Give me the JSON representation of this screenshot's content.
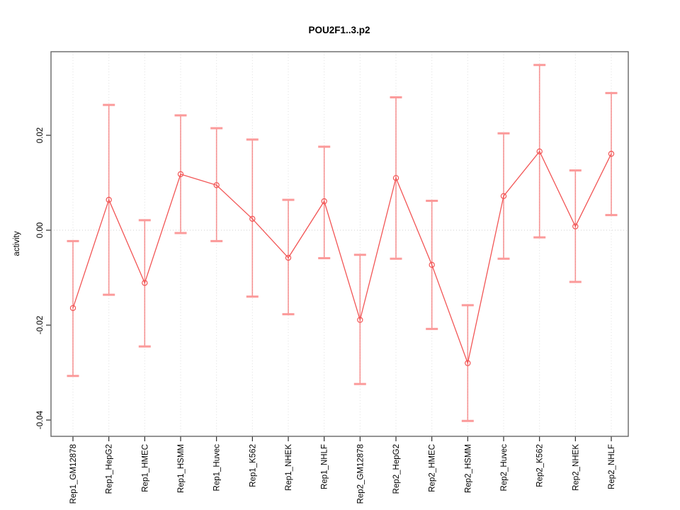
{
  "window": {
    "background": "#ffffff"
  },
  "chart_data": {
    "type": "line",
    "subtype": "points-with-error-bars",
    "title": "POU2F1..3.p2",
    "xlabel": "",
    "ylabel": "activity",
    "legend": "none",
    "grid": "vertical dotted gridlines at each category; dotted horizontal line at y=0",
    "ylim": [
      -0.0434,
      0.0376
    ],
    "yticks": [
      0.02,
      0.0,
      -0.02,
      -0.04
    ],
    "ytick_labels": [
      "0.02",
      "0.00",
      "-0.02",
      "-0.04"
    ],
    "categories": [
      "Rep1_GM12878",
      "Rep1_HepG2",
      "Rep1_HMEC",
      "Rep1_HSMM",
      "Rep1_Huvec",
      "Rep1_K562",
      "Rep1_NHEK",
      "Rep1_NHLF",
      "Rep2_GM12878",
      "Rep2_HepG2",
      "Rep2_HMEC",
      "Rep2_HSMM",
      "Rep2_Huvec",
      "Rep2_K562",
      "Rep2_NHEK",
      "Rep2_NHLF"
    ],
    "series": [
      {
        "name": "activity",
        "values": [
          -0.0164,
          0.0064,
          -0.0111,
          0.0118,
          0.0095,
          0.0024,
          -0.0058,
          0.0061,
          -0.0189,
          0.011,
          -0.0073,
          -0.028,
          0.0072,
          0.0166,
          0.0008,
          0.0161
        ],
        "error_low": [
          -0.0307,
          -0.0136,
          -0.0245,
          -0.0006,
          -0.0023,
          -0.014,
          -0.0177,
          -0.0059,
          -0.0324,
          -0.006,
          -0.0208,
          -0.0402,
          -0.006,
          -0.0015,
          -0.0109,
          0.0032
        ],
        "error_high": [
          -0.0023,
          0.0264,
          0.0021,
          0.0242,
          0.0215,
          0.0191,
          0.0064,
          0.0176,
          -0.0052,
          0.028,
          0.0062,
          -0.0158,
          0.0204,
          0.0348,
          0.0126,
          0.0289
        ]
      }
    ],
    "colors": {
      "line": "#f25555",
      "point": "#f25555",
      "error_bar": "#f46060",
      "error_cap": "#fb9a9a",
      "grid_vertical": "#e0e0e0",
      "grid_zero": "#cfcfcf",
      "frame": "#666666",
      "tick": "#000000",
      "text": "#000000"
    }
  }
}
